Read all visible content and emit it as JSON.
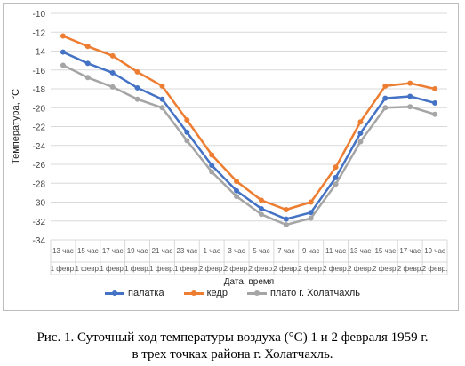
{
  "chart_data": {
    "type": "line",
    "title": "",
    "ylabel": "Температура, °С",
    "xlabel": "Дата, время",
    "ylim": [
      -34,
      -10
    ],
    "ytick_step": 2,
    "grid": true,
    "legend_placement": "bottom",
    "categories": [
      {
        "time": "13 час",
        "date": "1 февр."
      },
      {
        "time": "15 час",
        "date": "1 февр."
      },
      {
        "time": "17 час",
        "date": "1 февр."
      },
      {
        "time": "19 час",
        "date": "1 февр."
      },
      {
        "time": "21 час",
        "date": "1 февр."
      },
      {
        "time": "23 час",
        "date": "1 февр."
      },
      {
        "time": "1 час",
        "date": "2 февр."
      },
      {
        "time": "3 час",
        "date": "2 февр."
      },
      {
        "time": "5 час",
        "date": "2 февр."
      },
      {
        "time": "7 час",
        "date": "2 февр."
      },
      {
        "time": "9 час",
        "date": "2 февр."
      },
      {
        "time": "11 час",
        "date": "2 февр."
      },
      {
        "time": "13 час",
        "date": "2 февр."
      },
      {
        "time": "15 час",
        "date": "2 февр."
      },
      {
        "time": "17 час",
        "date": "2 февр."
      },
      {
        "time": "19 час",
        "date": "2 февр."
      }
    ],
    "series": [
      {
        "name": "палатка",
        "color": "#4472c4",
        "values": [
          -14.1,
          -15.3,
          -16.3,
          -17.9,
          -19.1,
          -22.6,
          -26.1,
          -28.8,
          -30.7,
          -31.8,
          -31.1,
          -27.4,
          -22.7,
          -19.0,
          -18.8,
          -19.5
        ]
      },
      {
        "name": "кедр",
        "color": "#ed7d31",
        "values": [
          -12.4,
          -13.5,
          -14.5,
          -16.2,
          -17.7,
          -21.3,
          -25.0,
          -27.8,
          -29.8,
          -30.8,
          -30.0,
          -26.3,
          -21.5,
          -17.7,
          -17.4,
          -18.0
        ]
      },
      {
        "name": "плато г. Холатчахль",
        "color": "#a5a5a5",
        "values": [
          -15.5,
          -16.8,
          -17.8,
          -19.1,
          -20.0,
          -23.5,
          -26.8,
          -29.4,
          -31.3,
          -32.4,
          -31.7,
          -28.1,
          -23.6,
          -20.0,
          -19.9,
          -20.7
        ]
      }
    ]
  },
  "caption": {
    "line1": "Рис. 1. Суточный ход температуры воздуха (°С) 1 и 2 февраля 1959 г.",
    "line2": "в трех точках района г. Холатчахль."
  }
}
